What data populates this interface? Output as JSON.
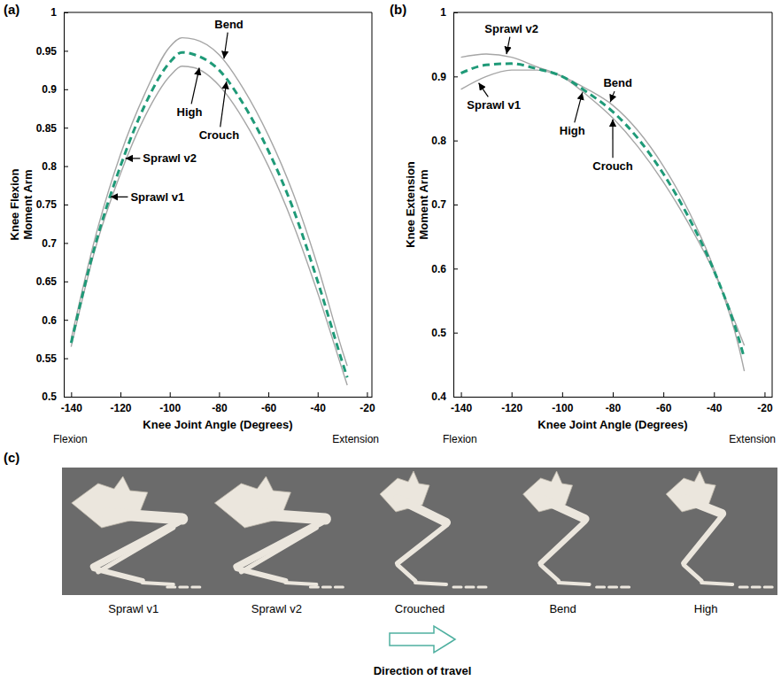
{
  "chart_data": [
    {
      "type": "line",
      "panel": "(a)",
      "xlabel": "Knee Joint Angle (Degrees)",
      "ylabel": [
        "Knee Flexion",
        "Moment Arm"
      ],
      "x_end_labels": [
        "Flexion",
        "Extension"
      ],
      "x": [
        -140,
        -130,
        -120,
        -110,
        -100,
        -95,
        -90,
        -80,
        -70,
        -60,
        -50,
        -40,
        -30,
        -28
      ],
      "series": [
        {
          "color": "#a6a6a6",
          "line_style": "solid",
          "values": [
            0.575,
            0.71,
            0.815,
            0.895,
            0.955,
            0.967,
            0.965,
            0.945,
            0.9,
            0.84,
            0.765,
            0.67,
            0.56,
            0.54
          ]
        },
        {
          "color": "#a6a6a6",
          "line_style": "solid",
          "values": [
            0.565,
            0.695,
            0.79,
            0.865,
            0.917,
            0.93,
            0.928,
            0.905,
            0.86,
            0.8,
            0.725,
            0.635,
            0.535,
            0.515
          ]
        },
        {
          "color": "#1f9a78",
          "line_style": "dashed",
          "values": [
            0.57,
            0.7,
            0.8,
            0.88,
            0.935,
            0.948,
            0.945,
            0.925,
            0.88,
            0.82,
            0.745,
            0.65,
            0.545,
            0.525
          ]
        }
      ],
      "xlim": [
        -143,
        -18
      ],
      "xticks": [
        -140,
        -120,
        -100,
        -80,
        -60,
        -40,
        -20
      ],
      "ylim": [
        0.5,
        1
      ],
      "yticks": [
        0.5,
        0.55,
        0.6,
        0.65,
        0.7,
        0.75,
        0.8,
        0.85,
        0.9,
        0.95,
        1
      ],
      "annotations": [
        {
          "text": "Bend",
          "x": -78,
          "y": 0.94,
          "text_x": -76,
          "text_y": 0.985
        },
        {
          "text": "High",
          "x": -88,
          "y": 0.928,
          "text_x": -92,
          "text_y": 0.87
        },
        {
          "text": "Crouch",
          "x": -77,
          "y": 0.91,
          "text_x": -80,
          "text_y": 0.84
        },
        {
          "text": "Sprawl v2",
          "x": -118,
          "y": 0.81,
          "text_x": -100,
          "text_y": 0.81
        },
        {
          "text": "Sprawl v1",
          "x": -124,
          "y": 0.76,
          "text_x": -105,
          "text_y": 0.76
        }
      ]
    },
    {
      "type": "line",
      "panel": "(b)",
      "xlabel": "Knee Joint Angle (Degrees)",
      "ylabel": [
        "Knee Extension",
        "Moment Arm"
      ],
      "x_end_labels": [
        "Flexion",
        "Extension"
      ],
      "x": [
        -140,
        -130,
        -120,
        -110,
        -100,
        -90,
        -80,
        -70,
        -60,
        -50,
        -40,
        -30,
        -28
      ],
      "series": [
        {
          "color": "#a6a6a6",
          "line_style": "solid",
          "values": [
            0.93,
            0.935,
            0.93,
            0.915,
            0.9,
            0.87,
            0.835,
            0.79,
            0.735,
            0.67,
            0.595,
            0.5,
            0.48
          ]
        },
        {
          "color": "#a6a6a6",
          "line_style": "solid",
          "values": [
            0.88,
            0.9,
            0.91,
            0.91,
            0.9,
            0.88,
            0.855,
            0.815,
            0.76,
            0.69,
            0.6,
            0.475,
            0.44
          ]
        },
        {
          "color": "#1f9a78",
          "line_style": "dashed",
          "values": [
            0.905,
            0.918,
            0.92,
            0.912,
            0.9,
            0.875,
            0.845,
            0.803,
            0.748,
            0.68,
            0.597,
            0.488,
            0.46
          ]
        }
      ],
      "xlim": [
        -143,
        -17
      ],
      "xticks": [
        -140,
        -120,
        -100,
        -80,
        -60,
        -40,
        -20
      ],
      "ylim": [
        0.4,
        1
      ],
      "yticks": [
        0.4,
        0.5,
        0.6,
        0.7,
        0.8,
        0.9,
        1
      ],
      "annotations": [
        {
          "text": "Sprawl v2",
          "x": -122,
          "y": 0.935,
          "text_x": -120,
          "text_y": 0.975
        },
        {
          "text": "Sprawl v1",
          "x": -133,
          "y": 0.89,
          "text_x": -127,
          "text_y": 0.855
        },
        {
          "text": "Bend",
          "x": -81,
          "y": 0.86,
          "text_x": -78,
          "text_y": 0.89
        },
        {
          "text": "High",
          "x": -92,
          "y": 0.875,
          "text_x": -96,
          "text_y": 0.815
        },
        {
          "text": "Crouch",
          "x": -80,
          "y": 0.833,
          "text_x": -80,
          "text_y": 0.76
        }
      ]
    }
  ],
  "panel_c": {
    "panel": "(c)",
    "labels": [
      "Sprawl v1",
      "Sprawl v2",
      "Crouched",
      "Bend",
      "High"
    ],
    "caption": "Direction of travel"
  }
}
